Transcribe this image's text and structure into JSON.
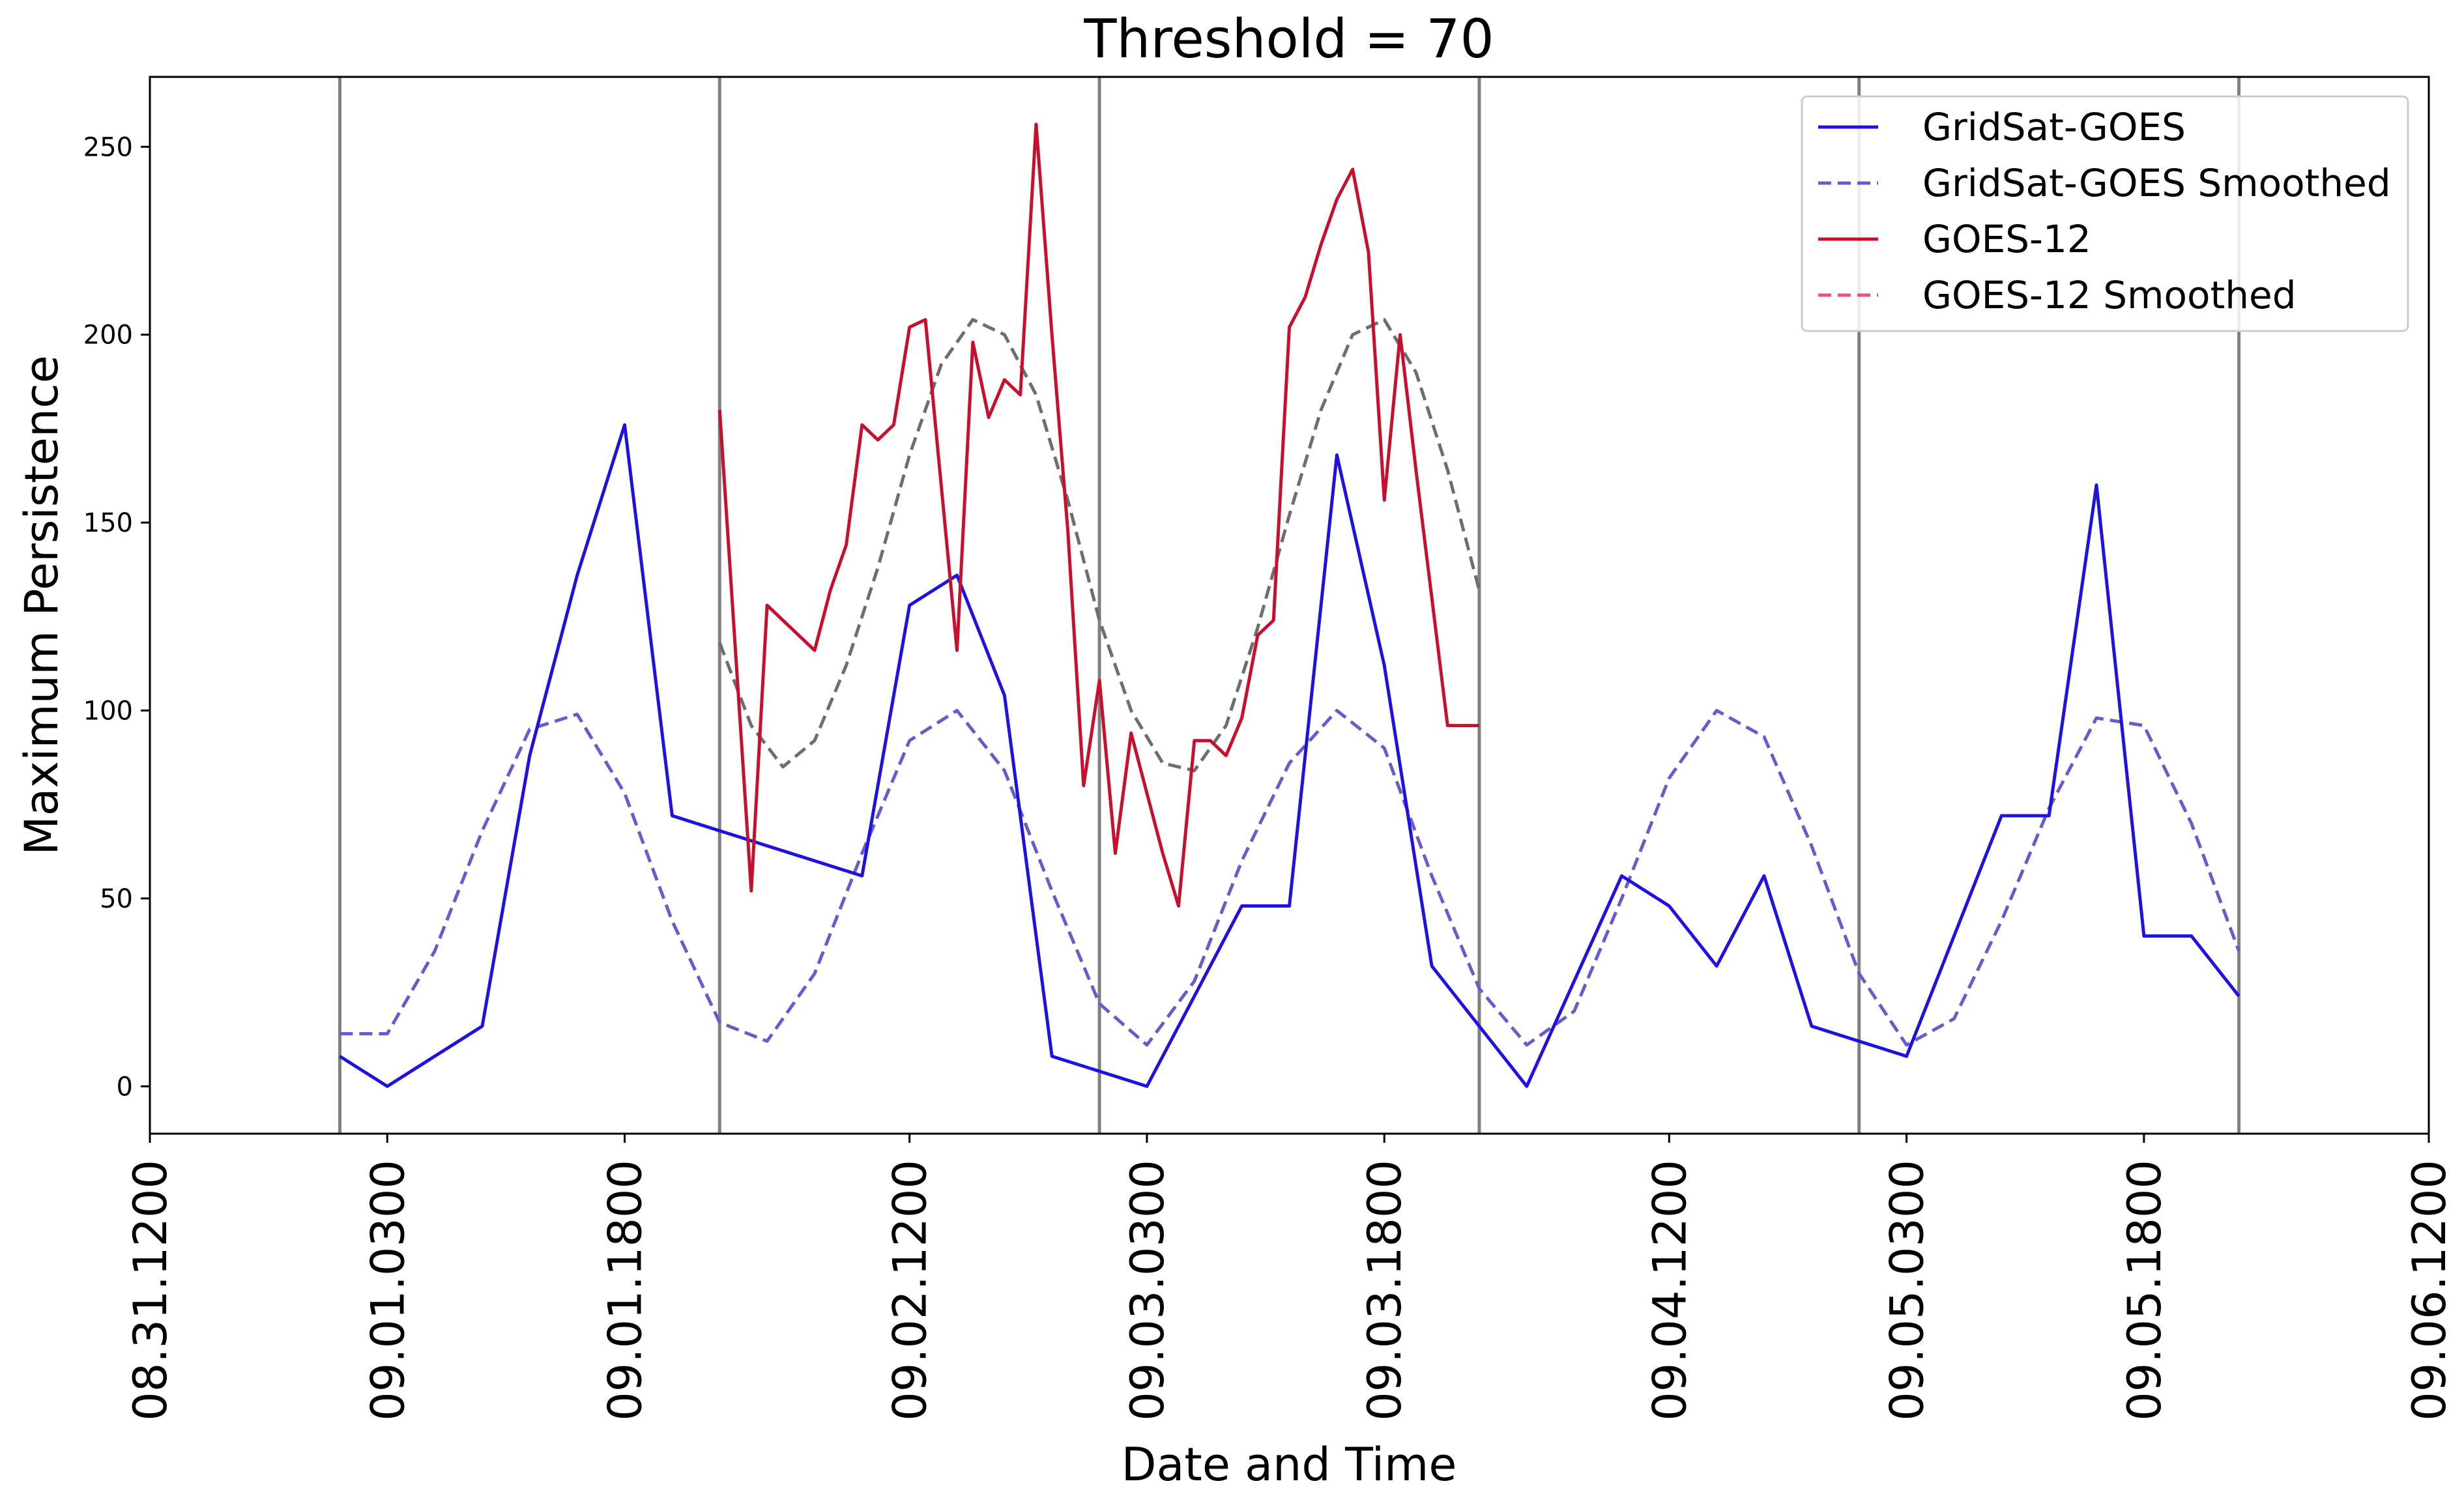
{
  "chart_data": {
    "type": "line",
    "title": "Threshold = 70",
    "xlabel": "Date and Time",
    "ylabel": "Maximum Persistence",
    "ylim": [
      -12.6,
      268.6
    ],
    "yticks": [
      0,
      50,
      100,
      150,
      200,
      250
    ],
    "x_range_hours": [
      0,
      144
    ],
    "x_tick_labels": [
      "08.31.1200",
      "09.01.0300",
      "09.01.1800",
      "09.02.1200",
      "09.03.0300",
      "09.03.1800",
      "09.04.1200",
      "09.05.0300",
      "09.05.1800",
      "09.06.1200"
    ],
    "x_tick_hours": [
      0,
      15,
      30,
      48,
      63,
      78,
      96,
      111,
      126,
      144
    ],
    "vertical_lines_hours": [
      12,
      36,
      60,
      84,
      108,
      132
    ],
    "colors": {
      "gridsat": "#1f12e0",
      "gridsat_smoothed": "#6a5acd",
      "goes12": "#c8102e",
      "goes12_smoothed": "#6e6e6e",
      "goes12_smoothed_legend": "#e8557a",
      "vline": "#808080"
    },
    "series": [
      {
        "name": "GridSat-GOES",
        "style": "solid",
        "x": [
          12,
          15,
          21,
          24,
          27,
          30,
          33,
          45,
          48,
          51,
          54,
          57,
          60,
          63,
          66,
          69,
          72,
          75,
          78,
          81,
          84,
          87,
          90,
          93,
          96,
          99,
          102,
          105,
          108,
          111,
          114,
          117,
          120,
          123,
          126,
          129,
          132
        ],
        "y": [
          8,
          0,
          16,
          88,
          136,
          176,
          72,
          56,
          128,
          136,
          104,
          8,
          4,
          0,
          24,
          48,
          48,
          168,
          112,
          32,
          16,
          0,
          28,
          56,
          48,
          32,
          56,
          16,
          12,
          8,
          40,
          72,
          72,
          160,
          40,
          40,
          24
        ]
      },
      {
        "name": "GridSat-GOES Smoothed",
        "style": "dashed",
        "x": [
          12,
          15,
          18,
          21,
          24,
          27,
          30,
          33,
          36,
          39,
          42,
          45,
          48,
          51,
          54,
          57,
          60,
          63,
          66,
          69,
          72,
          75,
          78,
          81,
          84,
          87,
          90,
          93,
          96,
          99,
          102,
          105,
          108,
          111,
          114,
          117,
          120,
          123,
          126,
          129,
          132
        ],
        "y": [
          14,
          14,
          36,
          68,
          95,
          99,
          78,
          44,
          17,
          12,
          30,
          62,
          92,
          100,
          84,
          52,
          22,
          11,
          28,
          60,
          86,
          100,
          90,
          56,
          26,
          11,
          20,
          50,
          82,
          100,
          93,
          64,
          30,
          11,
          18,
          44,
          74,
          98,
          96,
          70,
          36
        ]
      },
      {
        "name": "GOES-12",
        "style": "solid",
        "x": [
          36,
          38,
          39,
          42,
          43,
          44,
          45,
          46,
          47,
          48,
          49,
          51,
          52,
          53,
          54,
          55,
          56,
          57,
          58,
          59,
          60,
          61,
          62,
          63,
          64,
          65,
          66,
          67,
          68,
          69,
          70,
          71,
          72,
          73,
          74,
          75,
          76,
          77,
          78,
          79,
          80,
          81,
          82,
          84
        ],
        "y": [
          180,
          52,
          128,
          116,
          132,
          144,
          176,
          172,
          176,
          202,
          204,
          116,
          198,
          178,
          188,
          184,
          256,
          200,
          148,
          80,
          108,
          62,
          94,
          78,
          62,
          48,
          92,
          92,
          88,
          98,
          120,
          124,
          202,
          210,
          224,
          236,
          244,
          222,
          156,
          200,
          164,
          130,
          96,
          96
        ]
      },
      {
        "name": "GOES-12 Smoothed",
        "style": "dashed",
        "x": [
          36,
          38,
          40,
          42,
          44,
          46,
          48,
          50,
          52,
          54,
          56,
          58,
          60,
          62,
          64,
          66,
          68,
          70,
          72,
          74,
          76,
          78,
          80,
          82,
          84
        ],
        "y": [
          118,
          96,
          85,
          92,
          112,
          138,
          168,
          192,
          204,
          200,
          184,
          156,
          124,
          100,
          86,
          84,
          96,
          122,
          152,
          180,
          200,
          204,
          190,
          164,
          132
        ]
      }
    ],
    "legend": {
      "position": "top-right",
      "entries": [
        "GridSat-GOES",
        "GridSat-GOES Smoothed",
        "GOES-12",
        "GOES-12 Smoothed"
      ]
    },
    "grid": false
  }
}
